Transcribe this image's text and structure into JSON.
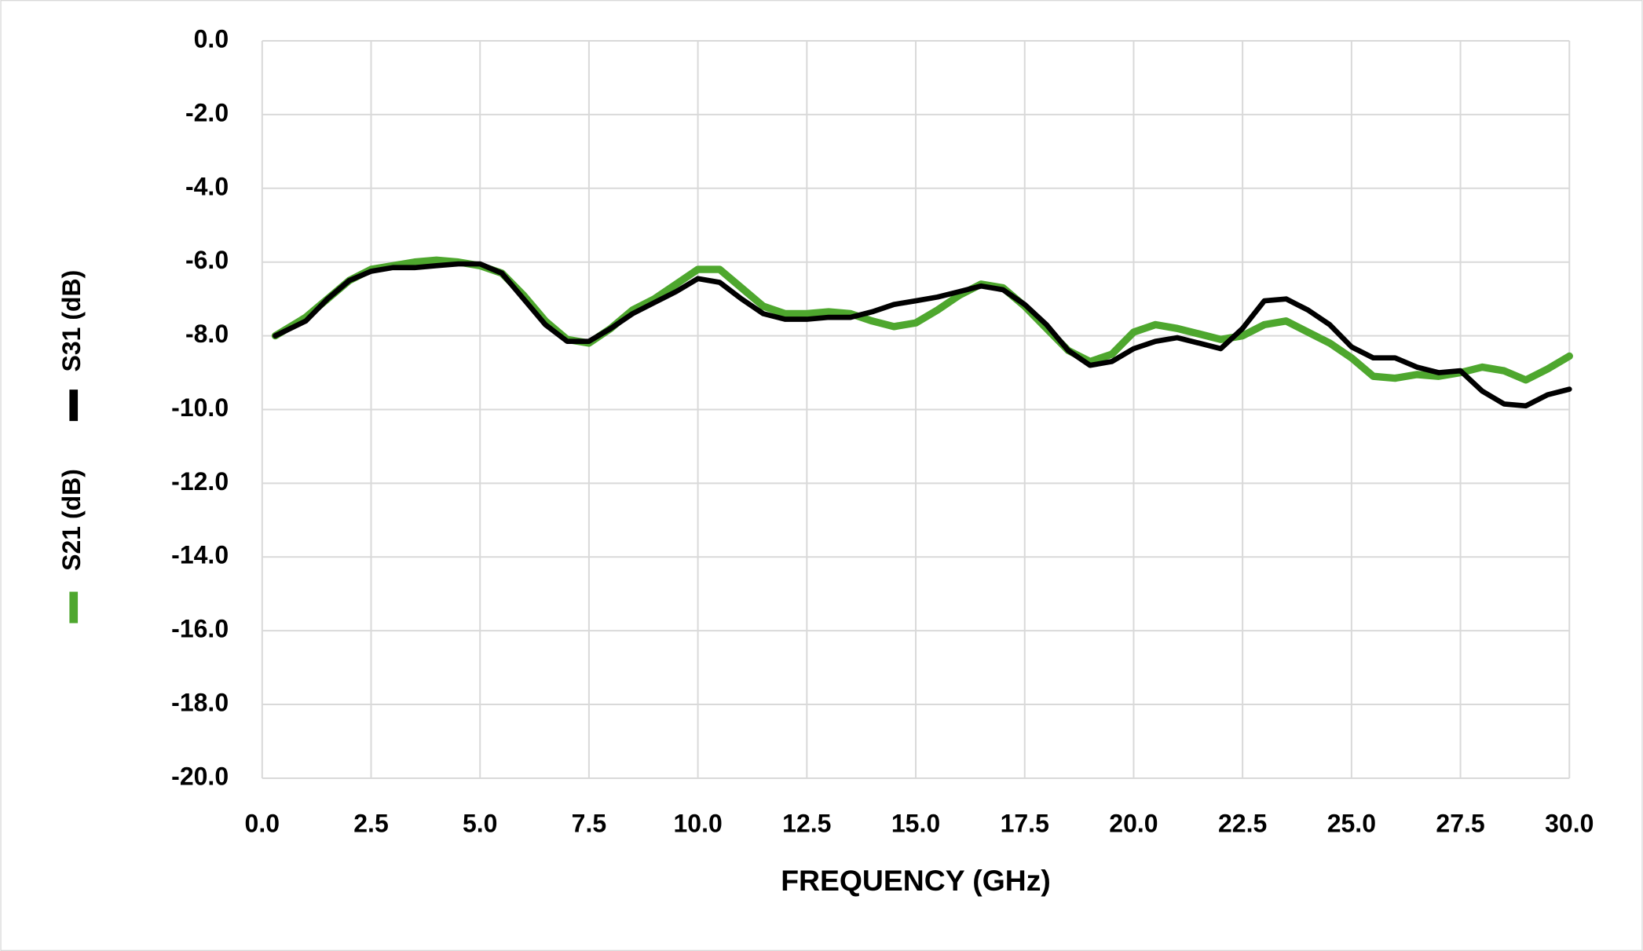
{
  "chart_data": {
    "type": "line",
    "x_label": "FREQUENCY (GHz)",
    "x": [
      0.3,
      1,
      1.5,
      2,
      2.5,
      3,
      3.5,
      4,
      4.5,
      5,
      5.5,
      6,
      6.5,
      7,
      7.5,
      8,
      8.5,
      9,
      9.5,
      10,
      10.5,
      11,
      11.5,
      12,
      12.5,
      13,
      13.5,
      14,
      14.5,
      15,
      15.5,
      16,
      16.5,
      17,
      17.5,
      18,
      18.5,
      19,
      19.5,
      20,
      20.5,
      21,
      21.5,
      22,
      22.5,
      23,
      23.5,
      24,
      24.5,
      25,
      25.5,
      26,
      26.5,
      27,
      27.5,
      28,
      28.5,
      29,
      29.5,
      30
    ],
    "series": [
      {
        "name": "S21 (dB)",
        "color": "#4ea72e",
        "values": [
          -8.0,
          -7.5,
          -7.0,
          -6.5,
          -6.2,
          -6.1,
          -6.0,
          -5.95,
          -6.0,
          -6.1,
          -6.3,
          -6.9,
          -7.6,
          -8.1,
          -8.2,
          -7.8,
          -7.3,
          -7.0,
          -6.6,
          -6.2,
          -6.2,
          -6.7,
          -7.2,
          -7.4,
          -7.4,
          -7.35,
          -7.4,
          -7.6,
          -7.75,
          -7.65,
          -7.3,
          -6.9,
          -6.6,
          -6.7,
          -7.2,
          -7.8,
          -8.4,
          -8.7,
          -8.5,
          -7.9,
          -7.7,
          -7.8,
          -7.95,
          -8.1,
          -8.0,
          -7.7,
          -7.6,
          -7.9,
          -8.2,
          -8.6,
          -9.1,
          -9.15,
          -9.05,
          -9.1,
          -9.0,
          -8.85,
          -8.95,
          -9.2,
          -8.9,
          -8.55
        ]
      },
      {
        "name": "S31 (dB)",
        "color": "#000000",
        "values": [
          -8.0,
          -7.6,
          -7.0,
          -6.5,
          -6.25,
          -6.15,
          -6.15,
          -6.1,
          -6.05,
          -6.05,
          -6.3,
          -7.0,
          -7.7,
          -8.15,
          -8.15,
          -7.8,
          -7.4,
          -7.1,
          -6.8,
          -6.45,
          -6.55,
          -7.0,
          -7.4,
          -7.55,
          -7.55,
          -7.5,
          -7.5,
          -7.35,
          -7.15,
          -7.05,
          -6.95,
          -6.8,
          -6.65,
          -6.75,
          -7.15,
          -7.7,
          -8.4,
          -8.8,
          -8.7,
          -8.35,
          -8.15,
          -8.05,
          -8.2,
          -8.35,
          -7.8,
          -7.05,
          -7.0,
          -7.3,
          -7.7,
          -8.3,
          -8.6,
          -8.6,
          -8.85,
          -9.0,
          -8.95,
          -9.5,
          -9.85,
          -9.9,
          -9.6,
          -9.45
        ]
      }
    ],
    "xlim": [
      0,
      30
    ],
    "xticks": [
      {
        "value": 0,
        "label": "0.0"
      },
      2.5,
      {
        "value": 5,
        "label": "5.0"
      },
      7.5,
      {
        "value": 10,
        "label": "10.0"
      },
      12.5,
      {
        "value": 15,
        "label": "15.0"
      },
      17.5,
      {
        "value": 20,
        "label": "20.0"
      },
      22.5,
      {
        "value": 25,
        "label": "25.0"
      },
      27.5,
      {
        "value": 30,
        "label": "30.0"
      }
    ],
    "ylim": [
      -20,
      0
    ],
    "yticks": [
      {
        "value": 0,
        "label": "0.0"
      },
      {
        "value": -2,
        "label": "-2.0"
      },
      {
        "value": -4,
        "label": "-4.0"
      },
      {
        "value": -6,
        "label": "-6.0"
      },
      {
        "value": -8,
        "label": "-8.0"
      },
      {
        "value": -10,
        "label": "-10.0"
      },
      {
        "value": -12,
        "label": "-12.0"
      },
      {
        "value": -14,
        "label": "-14.0"
      },
      {
        "value": -16,
        "label": "-16.0"
      },
      {
        "value": -18,
        "label": "-18.0"
      },
      {
        "value": -20,
        "label": "-20.0"
      }
    ],
    "grid": true
  }
}
